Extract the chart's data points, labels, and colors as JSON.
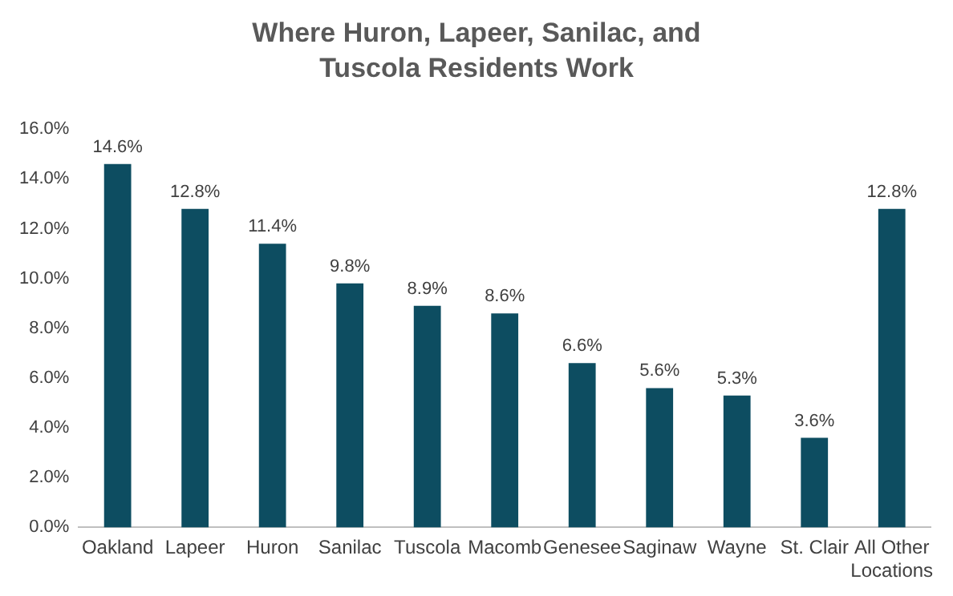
{
  "chart_data": {
    "type": "bar",
    "title": "Where Huron, Lapeer, Sanilac, and Tuscola Residents Work",
    "categories": [
      "Oakland",
      "Lapeer",
      "Huron",
      "Sanilac",
      "Tuscola",
      "Macomb",
      "Genesee",
      "Saginaw",
      "Wayne",
      "St. Clair",
      "All Other Locations"
    ],
    "values": [
      14.6,
      12.8,
      11.4,
      9.8,
      8.9,
      8.6,
      6.6,
      5.6,
      5.3,
      3.6,
      12.8
    ],
    "value_labels": [
      "14.6%",
      "12.8%",
      "11.4%",
      "9.8%",
      "8.9%",
      "8.6%",
      "6.6%",
      "5.6%",
      "5.3%",
      "3.6%",
      "12.8%"
    ],
    "color": "#0d4d61",
    "ylim": [
      0,
      16
    ],
    "yticks": [
      {
        "value": 0,
        "label": "0.0%"
      },
      {
        "value": 2,
        "label": "2.0%"
      },
      {
        "value": 4,
        "label": "4.0%"
      },
      {
        "value": 6,
        "label": "6.0%"
      },
      {
        "value": 8,
        "label": "8.0%"
      },
      {
        "value": 10,
        "label": "10.0%"
      },
      {
        "value": 12,
        "label": "12.0%"
      },
      {
        "value": 14,
        "label": "14.0%"
      },
      {
        "value": 16,
        "label": "16.0%"
      }
    ],
    "grid": false,
    "legend": false
  }
}
